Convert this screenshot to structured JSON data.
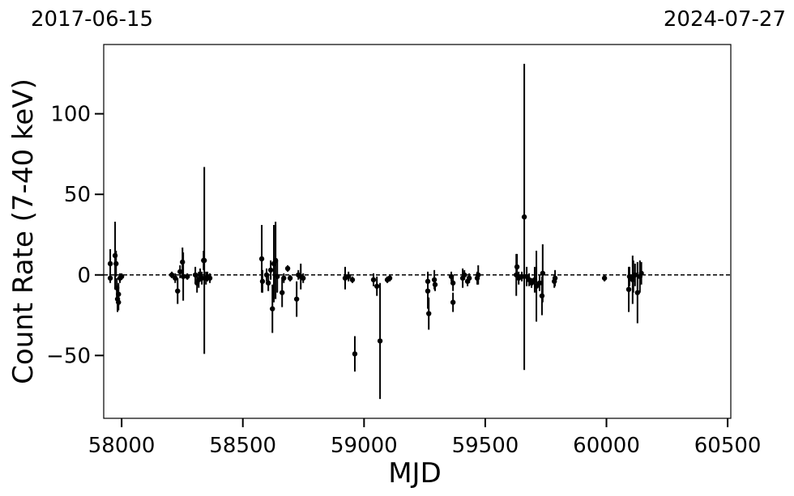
{
  "chart_data": {
    "type": "errorbar-scatter",
    "xlabel": "MJD",
    "ylabel": "Count Rate (7-40 keV)",
    "annotations": [
      "2017-06-15",
      "2024-07-27"
    ],
    "x": [
      57953,
      57953,
      57973,
      57977,
      57980,
      57983,
      57987,
      57987,
      57993,
      58000,
      58207,
      58221,
      58231,
      58241,
      58251,
      58254,
      58271,
      58304,
      58311,
      58318,
      58324,
      58331,
      58338,
      58341,
      58348,
      58354,
      58364,
      58578,
      58581,
      58598,
      58605,
      58615,
      58622,
      58628,
      58635,
      58642,
      58662,
      58669,
      58685,
      58695,
      58722,
      58729,
      58739,
      58749,
      58922,
      58936,
      58952,
      58962,
      59039,
      59053,
      59066,
      59096,
      59106,
      59263,
      59263,
      59267,
      59290,
      59293,
      59360,
      59367,
      59367,
      59407,
      59414,
      59427,
      59434,
      59467,
      59471,
      59628,
      59631,
      59638,
      59651,
      59661,
      59671,
      59681,
      59691,
      59704,
      59711,
      59724,
      59734,
      59737,
      59785,
      59788,
      59992,
      60092,
      60095,
      60108,
      60111,
      60118,
      60128,
      60138,
      60144
    ],
    "values": [
      7,
      -2,
      12,
      7,
      -8,
      -15,
      -12,
      -17,
      -2,
      -1,
      0,
      -2,
      -10,
      2,
      8,
      -1,
      -1,
      0,
      -5,
      -3,
      0,
      -2,
      9,
      9,
      -2,
      -1,
      -2,
      10,
      -4,
      0,
      -5,
      3,
      -21,
      7,
      9,
      -1,
      -11,
      -2,
      4,
      -2,
      -15,
      0,
      -1,
      -2,
      -2,
      -1,
      -3,
      -49,
      -3,
      -7,
      -41,
      -3,
      -2,
      -4,
      -10,
      -24,
      -3,
      -6,
      -1,
      -5,
      -17,
      -2,
      0,
      -4,
      -2,
      -2,
      0,
      0,
      5,
      -2,
      -1,
      36,
      -1,
      -3,
      -5,
      -3,
      -7,
      -5,
      -13,
      1,
      -4,
      -2,
      -2,
      -9,
      -1,
      -3,
      -1,
      0,
      -11,
      -1,
      1
    ],
    "errors": [
      9,
      3,
      21,
      8,
      6,
      8,
      7,
      5,
      3,
      2,
      2,
      3,
      8,
      4,
      9,
      15,
      2,
      5,
      6,
      5,
      4,
      4,
      6,
      58,
      4,
      3,
      3,
      21,
      7,
      4,
      5,
      6,
      15,
      24,
      24,
      10,
      9,
      3,
      2,
      2,
      11,
      3,
      8,
      3,
      7,
      3,
      2,
      11,
      4,
      6,
      36,
      2,
      2,
      6,
      11,
      10,
      6,
      4,
      3,
      5,
      6,
      6,
      3,
      3,
      3,
      4,
      6,
      13,
      8,
      4,
      3,
      95,
      6,
      4,
      3,
      8,
      22,
      5,
      12,
      18,
      4,
      5,
      2,
      14,
      6,
      15,
      10,
      7,
      19,
      10,
      7
    ],
    "color": "#000000",
    "xlim": [
      57926,
      60513
    ],
    "xticks": [
      58000,
      58500,
      59000,
      59500,
      60000,
      60500
    ],
    "ylim": [
      -89,
      143
    ],
    "yticks": [
      {
        "value": -50,
        "label": "−50"
      },
      0,
      50,
      100
    ],
    "hline": 0,
    "grid": false
  }
}
